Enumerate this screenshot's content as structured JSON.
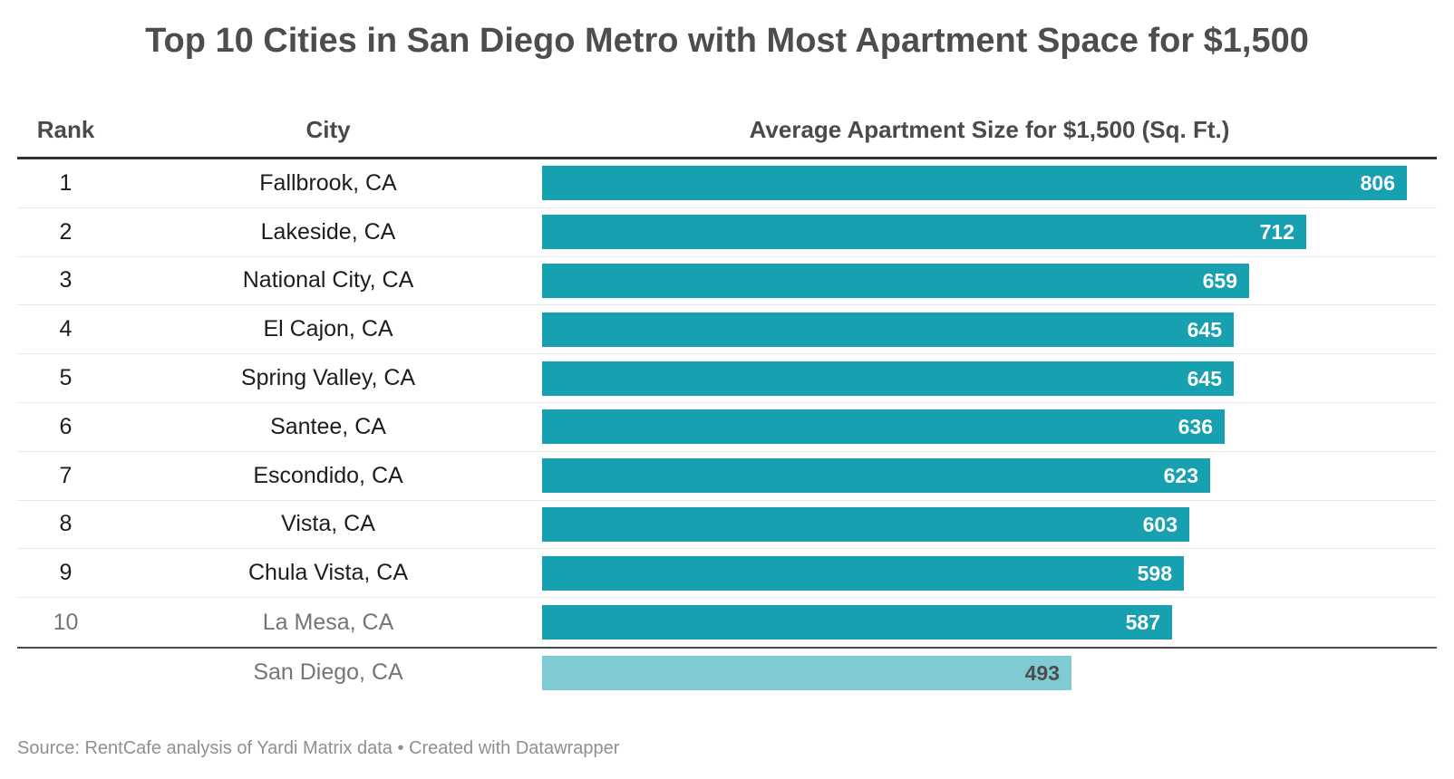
{
  "title": "Top 10 Cities in San Diego Metro with Most Apartment Space for $1,500",
  "header": {
    "rank": "Rank",
    "city": "City",
    "value": "Average Apartment Size for $1,500 (Sq. Ft.)"
  },
  "chart_data": {
    "type": "bar",
    "orientation": "horizontal",
    "title": "Top 10 Cities in San Diego Metro with Most Apartment Space for $1,500",
    "value_axis_label": "Average Apartment Size for $1,500 (Sq. Ft.)",
    "xlim": [
      0,
      806
    ],
    "grid": false,
    "legend": false,
    "rows": [
      {
        "rank": "1",
        "city": "Fallbrook, CA",
        "value": 806,
        "muted": false,
        "comparison": false
      },
      {
        "rank": "2",
        "city": "Lakeside, CA",
        "value": 712,
        "muted": false,
        "comparison": false
      },
      {
        "rank": "3",
        "city": "National City, CA",
        "value": 659,
        "muted": false,
        "comparison": false
      },
      {
        "rank": "4",
        "city": "El Cajon, CA",
        "value": 645,
        "muted": false,
        "comparison": false
      },
      {
        "rank": "5",
        "city": "Spring Valley, CA",
        "value": 645,
        "muted": false,
        "comparison": false
      },
      {
        "rank": "6",
        "city": "Santee, CA",
        "value": 636,
        "muted": false,
        "comparison": false
      },
      {
        "rank": "7",
        "city": "Escondido, CA",
        "value": 623,
        "muted": false,
        "comparison": false
      },
      {
        "rank": "8",
        "city": "Vista, CA",
        "value": 603,
        "muted": false,
        "comparison": false
      },
      {
        "rank": "9",
        "city": "Chula Vista, CA",
        "value": 598,
        "muted": false,
        "comparison": false
      },
      {
        "rank": "10",
        "city": "La Mesa, CA",
        "value": 587,
        "muted": true,
        "comparison": false
      },
      {
        "rank": "",
        "city": "San Diego, CA",
        "value": 493,
        "muted": true,
        "comparison": true
      }
    ],
    "colors": {
      "bar": "#16a0b0",
      "comparison_bar": "#7fcbd4"
    }
  },
  "footer": {
    "source": "Source: RentCafe analysis of Yardi Matrix data • Created with Datawrapper"
  }
}
